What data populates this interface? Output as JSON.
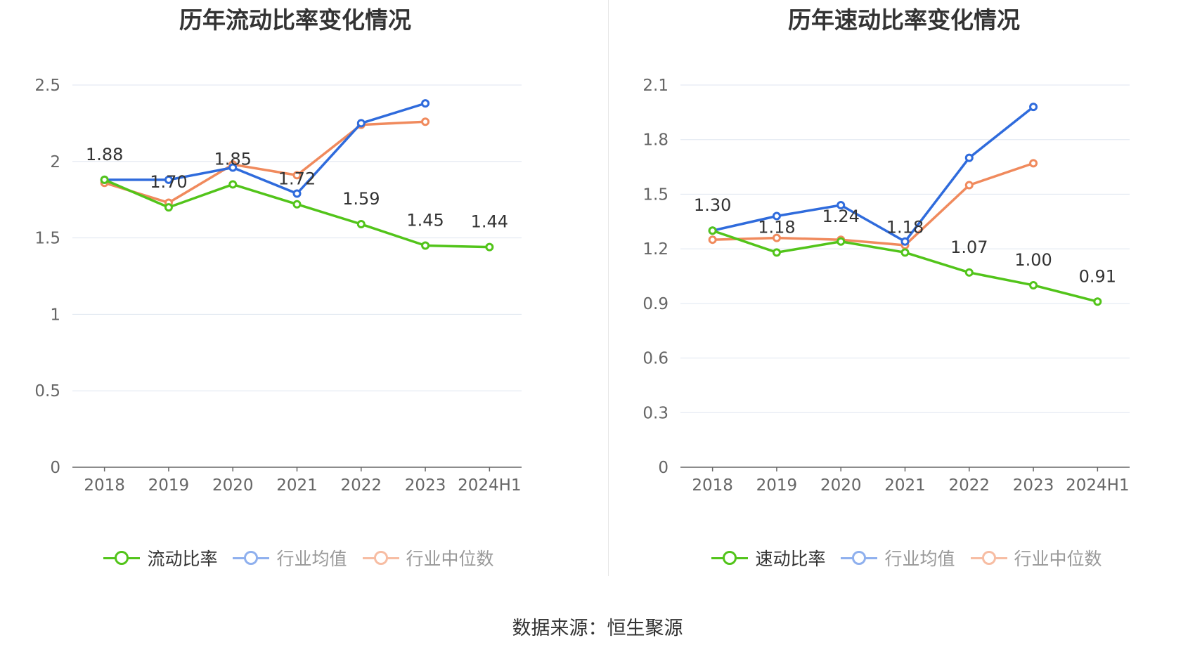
{
  "chart_data": [
    {
      "type": "line",
      "title": "历年流动比率变化情况",
      "categories": [
        "2018",
        "2019",
        "2020",
        "2021",
        "2022",
        "2023",
        "2024H1"
      ],
      "ylim": [
        0,
        2.5
      ],
      "yticks": [
        "0",
        "0.5",
        "1",
        "1.5",
        "2",
        "2.5"
      ],
      "ytick_values": [
        0,
        0.5,
        1,
        1.5,
        2,
        2.5
      ],
      "xlabel": "",
      "ylabel": "",
      "legend_position": "bottom-center",
      "series": [
        {
          "name": "流动比率",
          "color": "#52c41a",
          "values": [
            1.88,
            1.7,
            1.85,
            1.72,
            1.59,
            1.45,
            1.44
          ],
          "labels": [
            "1.88",
            "1.70",
            "1.85",
            "1.72",
            "1.59",
            "1.45",
            "1.44"
          ]
        },
        {
          "name": "行业均值",
          "color": "#2f6bdc",
          "values": [
            1.88,
            1.88,
            1.96,
            1.79,
            2.25,
            2.38,
            null
          ]
        },
        {
          "name": "行业中位数",
          "color": "#f08a5d",
          "values": [
            1.86,
            1.73,
            1.98,
            1.91,
            2.24,
            2.26,
            null
          ]
        }
      ]
    },
    {
      "type": "line",
      "title": "历年速动比率变化情况",
      "categories": [
        "2018",
        "2019",
        "2020",
        "2021",
        "2022",
        "2023",
        "2024H1"
      ],
      "ylim": [
        0,
        2.1
      ],
      "yticks": [
        "0",
        "0.3",
        "0.6",
        "0.9",
        "1.2",
        "1.5",
        "1.8",
        "2.1"
      ],
      "ytick_values": [
        0,
        0.3,
        0.6,
        0.9,
        1.2,
        1.5,
        1.8,
        2.1
      ],
      "xlabel": "",
      "ylabel": "",
      "legend_position": "bottom-center",
      "series": [
        {
          "name": "速动比率",
          "color": "#52c41a",
          "values": [
            1.3,
            1.18,
            1.24,
            1.18,
            1.07,
            1.0,
            0.91
          ],
          "labels": [
            "1.30",
            "1.18",
            "1.24",
            "1.18",
            "1.07",
            "1.00",
            "0.91"
          ]
        },
        {
          "name": "行业均值",
          "color": "#2f6bdc",
          "values": [
            1.3,
            1.38,
            1.44,
            1.24,
            1.7,
            1.98,
            null
          ]
        },
        {
          "name": "行业中位数",
          "color": "#f08a5d",
          "values": [
            1.25,
            1.26,
            1.25,
            1.22,
            1.55,
            1.67,
            null
          ]
        }
      ]
    }
  ],
  "legend_inactive_colors": {
    "行业均值": "#8fb0ee",
    "行业中位数": "#f7bda3"
  },
  "source": "数据来源：恒生聚源"
}
